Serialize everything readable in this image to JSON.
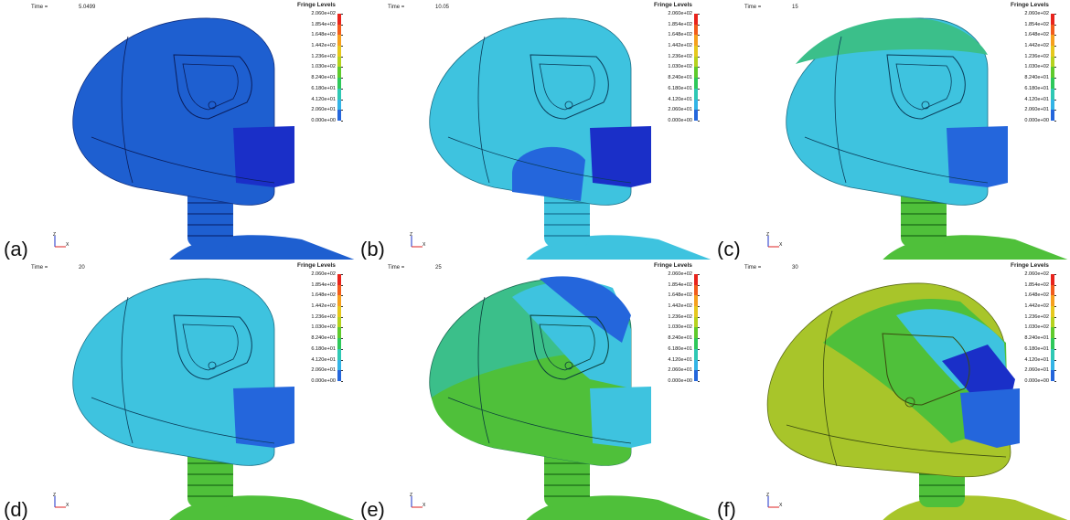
{
  "legend": {
    "title": "Fringe Levels",
    "levels": [
      "2.060e+02",
      "1.854e+02",
      "1.648e+02",
      "1.442e+02",
      "1.236e+02",
      "1.030e+02",
      "8.240e+01",
      "6.180e+01",
      "4.120e+01",
      "2.060e+01",
      "0.000e+00"
    ],
    "colors": [
      "#e8231c",
      "#f25c1c",
      "#f6a01e",
      "#e6c81e",
      "#b6d21e",
      "#5fca2c",
      "#2ec85a",
      "#2fc8b4",
      "#33b4e6",
      "#2466dc",
      "#1f1fd6"
    ]
  },
  "time_label": "Time =",
  "panels": [
    {
      "letter": "(a)",
      "time": "5.0499"
    },
    {
      "letter": "(b)",
      "time": "10.05"
    },
    {
      "letter": "(c)",
      "time": "15"
    },
    {
      "letter": "(d)",
      "time": "20"
    },
    {
      "letter": "(e)",
      "time": "25"
    },
    {
      "letter": "(f)",
      "time": "30"
    }
  ],
  "triad": {
    "z": "Z",
    "x": "X"
  },
  "colors": {
    "blue": "#1e5fd0",
    "deep_blue": "#1a2fc8",
    "cyan": "#3ec3df",
    "green": "#4fc03a",
    "yellow_green": "#a8c52a",
    "teal_green": "#3bbf8a"
  }
}
